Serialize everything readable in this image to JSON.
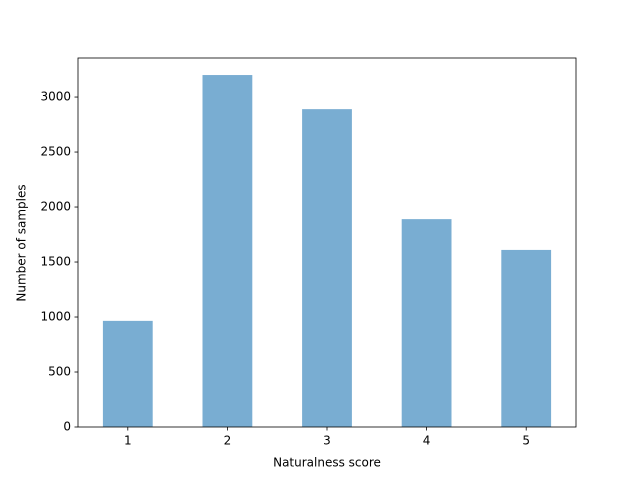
{
  "chart_data": {
    "type": "bar",
    "x_label": "Naturalness score",
    "y_label": "Number of samples",
    "categories": [
      "1",
      "2",
      "3",
      "4",
      "5"
    ],
    "values": [
      965,
      3200,
      2890,
      1890,
      1610
    ],
    "color": "#79add2",
    "ylim": [
      0,
      3355
    ],
    "yticks": [
      0,
      500,
      1000,
      1500,
      2000,
      2500,
      3000
    ],
    "grid": false
  }
}
